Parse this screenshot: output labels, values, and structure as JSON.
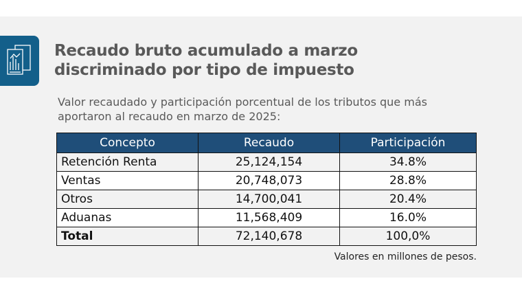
{
  "title_line1": "Recaudo bruto acumulado a marzo",
  "title_line2": "discriminado por tipo de impuesto",
  "subtitle_line1": "Valor recaudado y participación porcentual de los tributos que más",
  "subtitle_line2": "aportaron al recaudo en marzo de 2025:",
  "table": {
    "headers": [
      "Concepto",
      "Recaudo",
      "Participación"
    ],
    "rows": [
      [
        "Retención Renta",
        "25,124,154",
        "34.8%"
      ],
      [
        "Ventas",
        "20,748,073",
        "28.8%"
      ],
      [
        "Otros",
        "14,700,041",
        "20.4%"
      ],
      [
        "Aduanas",
        "11,568,409",
        "16.0%"
      ],
      [
        "Total",
        "72,140,678",
        "100,0%"
      ]
    ]
  },
  "note": "Valores en millones de pesos.",
  "colors": {
    "accent": "#135f8a",
    "header": "#1f4e79"
  }
}
